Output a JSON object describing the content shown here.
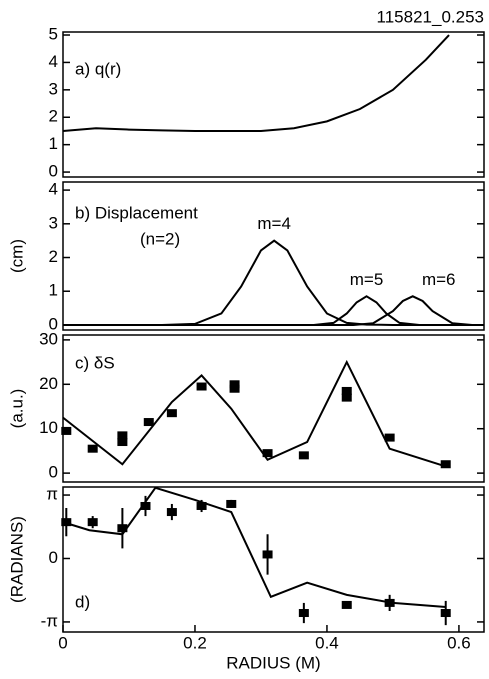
{
  "chart_data": [
    {
      "type": "line",
      "id_label": "115821_0.253",
      "annotations": [
        "a) q(r)"
      ],
      "xlim": [
        0,
        0.638
      ],
      "ylim": [
        -0.18,
        5.11
      ],
      "yticks": [
        0,
        1,
        2,
        3,
        4,
        5
      ],
      "series": [
        {
          "mode": "lines",
          "color": "#000000",
          "x": [
            0,
            0.05,
            0.1,
            0.15,
            0.2,
            0.25,
            0.3,
            0.35,
            0.4,
            0.45,
            0.5,
            0.55,
            0.585
          ],
          "values": [
            1.5,
            1.6,
            1.55,
            1.52,
            1.5,
            1.5,
            1.5,
            1.6,
            1.85,
            2.3,
            3.0,
            4.1,
            5.0
          ]
        }
      ]
    },
    {
      "type": "line",
      "annotations": [
        "b) Displacement",
        "(n=2)"
      ],
      "ylabel": "(cm)",
      "xlim": [
        0,
        0.638
      ],
      "ylim": [
        -0.15,
        4.24
      ],
      "yticks": [
        0,
        1,
        2,
        3,
        4
      ],
      "series": [
        {
          "name": "m=4",
          "mode": "lines",
          "color": "#000000",
          "x": [
            0,
            0.15,
            0.2,
            0.24,
            0.27,
            0.3,
            0.32,
            0.34,
            0.37,
            0.4,
            0.43,
            0.46,
            0.5,
            0.638
          ],
          "values": [
            0,
            0,
            0.03,
            0.34,
            1.14,
            2.21,
            2.5,
            2.21,
            1.14,
            0.34,
            0.06,
            0.01,
            0,
            0
          ]
        },
        {
          "name": "m=5",
          "mode": "lines",
          "color": "#000000",
          "x": [
            0,
            0.38,
            0.41,
            0.43,
            0.445,
            0.46,
            0.475,
            0.49,
            0.51,
            0.54,
            0.638
          ],
          "values": [
            0,
            0,
            0.06,
            0.34,
            0.67,
            0.85,
            0.67,
            0.34,
            0.06,
            0,
            0
          ]
        },
        {
          "name": "m=6",
          "mode": "lines",
          "color": "#000000",
          "x": [
            0,
            0.44,
            0.47,
            0.5,
            0.515,
            0.53,
            0.545,
            0.56,
            0.59,
            0.62,
            0.638
          ],
          "values": [
            0,
            0,
            0.05,
            0.41,
            0.71,
            0.85,
            0.71,
            0.41,
            0.05,
            0,
            0
          ]
        }
      ]
    },
    {
      "type": "line",
      "annotations": [
        "c) δS"
      ],
      "ylabel": "(a.u.)",
      "xlim": [
        0,
        0.638
      ],
      "ylim": [
        -2,
        31.1
      ],
      "yticks": [
        0,
        10,
        20,
        30
      ],
      "series": [
        {
          "mode": "lines",
          "color": "#000000",
          "x": [
            0,
            0.09,
            0.165,
            0.21,
            0.255,
            0.31,
            0.37,
            0.43,
            0.495,
            0.58
          ],
          "values": [
            12.5,
            2,
            16,
            22,
            14.5,
            3,
            7,
            25,
            5.5,
            1.5
          ]
        },
        {
          "mode": "markers",
          "color": "#000000",
          "x": [
            0.005,
            0.045,
            0.09,
            0.09,
            0.13,
            0.165,
            0.21,
            0.26,
            0.26,
            0.31,
            0.365,
            0.43,
            0.43,
            0.495,
            0.58
          ],
          "values": [
            9.5,
            5.5,
            7,
            8.5,
            11.5,
            13.5,
            19.5,
            19,
            20,
            4.5,
            4,
            17,
            18.5,
            8,
            2
          ]
        }
      ]
    },
    {
      "type": "line",
      "annotations": [
        "d)"
      ],
      "ylabel": "(RADIANS)",
      "xlabel": "RADIUS (M)",
      "xlim": [
        0,
        0.638
      ],
      "xticks": [
        0,
        0.2,
        0.4,
        0.6
      ],
      "ylim": [
        -3.64,
        3.54
      ],
      "yticks": [
        {
          "value": 3.14159,
          "label": "π"
        },
        0,
        {
          "value": -3.14159,
          "label": "-π"
        }
      ],
      "series": [
        {
          "mode": "lines",
          "color": "#000000",
          "x": [
            0,
            0.04,
            0.09,
            0.14,
            0.2,
            0.255,
            0.315,
            0.37,
            0.43,
            0.5,
            0.58
          ],
          "values": [
            1.8,
            1.4,
            1.2,
            3.5,
            2.9,
            2.3,
            -1.9,
            -1.2,
            -1.8,
            -2.2,
            -2.4
          ]
        },
        {
          "mode": "markers",
          "color": "#000000",
          "x": [
            0.005,
            0.045,
            0.09,
            0.125,
            0.165,
            0.21,
            0.255,
            0.31,
            0.365,
            0.43,
            0.495,
            0.58
          ],
          "values": [
            1.8,
            1.8,
            1.5,
            2.6,
            2.3,
            2.6,
            2.7,
            0.2,
            -2.7,
            -2.3,
            -2.2,
            -2.7
          ],
          "errors": [
            0.7,
            0.3,
            1.0,
            0.5,
            0.4,
            0.3,
            0.2,
            1.0,
            0.5,
            0.1,
            0.4,
            0.6
          ]
        }
      ]
    }
  ]
}
